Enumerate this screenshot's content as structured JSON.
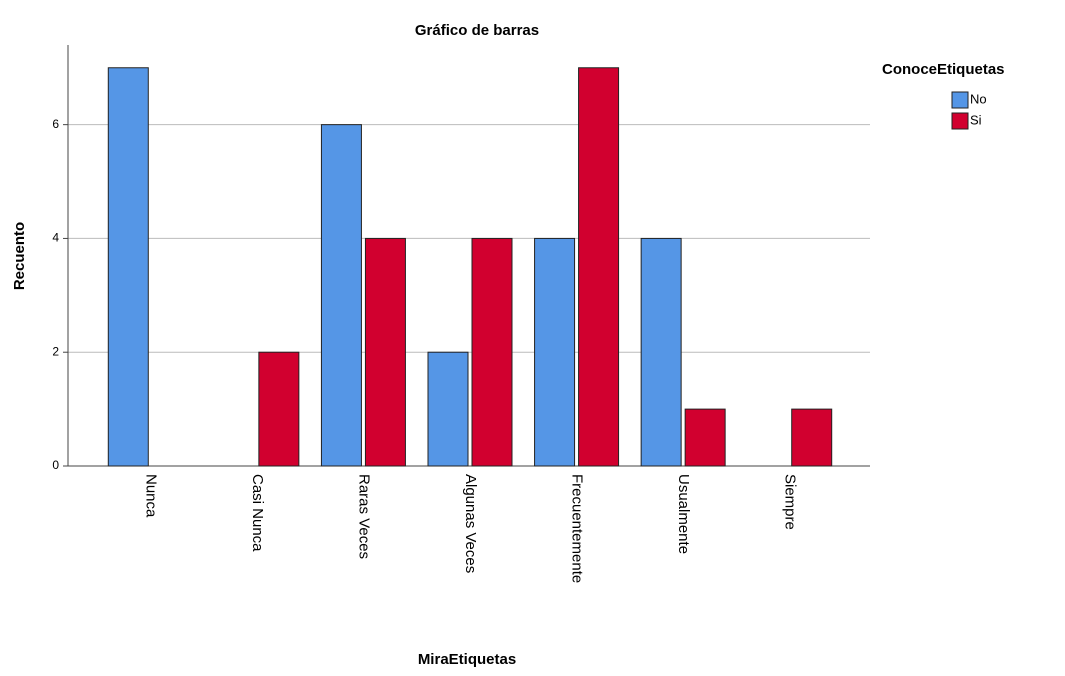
{
  "chart_data": {
    "type": "bar",
    "title": "Gráfico de barras",
    "x_label": "MiraEtiquetas",
    "y_label": "Recuento",
    "legend_title": "ConoceEtiquetas",
    "legend": "top-right",
    "categories": [
      "Nunca",
      "Casi Nunca",
      "Raras Veces",
      "Algunas Veces",
      "Frecuentemente",
      "Usualmente",
      "Siempre"
    ],
    "series": [
      {
        "name": "No",
        "color": "#5596e6",
        "values": [
          7,
          0,
          6,
          2,
          4,
          4,
          0
        ]
      },
      {
        "name": "Si",
        "color": "#d1002f",
        "values": [
          0,
          2,
          4,
          4,
          7,
          1,
          1
        ]
      }
    ],
    "ylim": [
      0,
      7.4
    ],
    "yticks": [
      0,
      2,
      4,
      6
    ],
    "grid": true
  }
}
